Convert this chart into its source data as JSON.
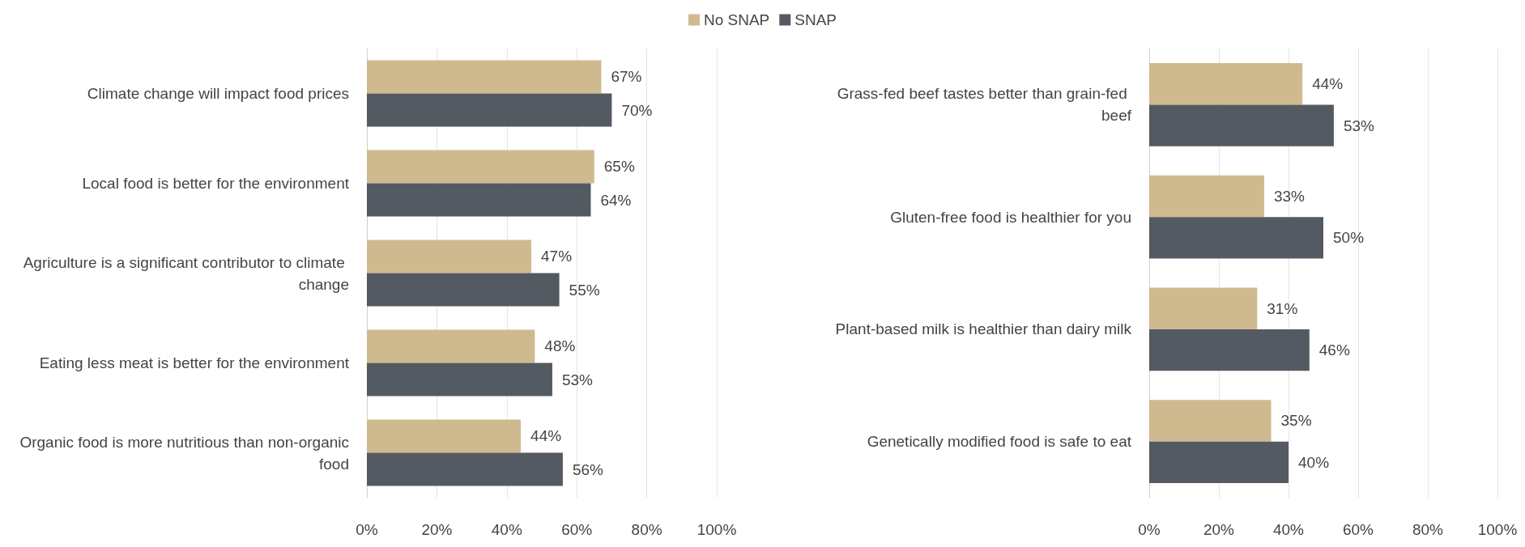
{
  "chart_data": [
    {
      "type": "bar",
      "orientation": "horizontal",
      "categories": [
        "Climate change will impact food prices",
        "Local food is better for the environment",
        "Agriculture is a significant contributor to climate change",
        "Eating less meat is better for the environment",
        "Organic food is more nutritious than non-organic food"
      ],
      "series": [
        {
          "name": "No SNAP",
          "color": "#cfba8f",
          "values": [
            67,
            65,
            47,
            48,
            44
          ],
          "value_labels": [
            "67%",
            "65%",
            "47%",
            "48%",
            "44%"
          ]
        },
        {
          "name": "SNAP",
          "color": "#545a61",
          "values": [
            70,
            64,
            55,
            53,
            56
          ],
          "value_labels": [
            "70%",
            "64%",
            "55%",
            "53%",
            "56%"
          ]
        }
      ],
      "xlim": [
        0,
        100
      ],
      "xticks": [
        {
          "value": 0,
          "label": "0%"
        },
        {
          "value": 20,
          "label": "20%"
        },
        {
          "value": 40,
          "label": "40%"
        },
        {
          "value": 60,
          "label": "60%"
        },
        {
          "value": 80,
          "label": "80%"
        },
        {
          "value": 100,
          "label": "100%"
        }
      ],
      "grid": "x",
      "legend": "top"
    },
    {
      "type": "bar",
      "orientation": "horizontal",
      "categories": [
        "Grass-fed beef tastes better than grain-fed beef",
        "Gluten-free food is healthier for you",
        "Plant-based milk is healthier than dairy milk",
        "Genetically modified food is safe to eat"
      ],
      "series": [
        {
          "color": "#cfba8f",
          "values": [
            44,
            33,
            31,
            35
          ],
          "value_labels": [
            "44%",
            "33%",
            "31%",
            "35%"
          ]
        },
        {
          "color": "#545a61",
          "values": [
            53,
            50,
            46,
            40
          ],
          "value_labels": [
            "53%",
            "50%",
            "46%",
            "40%"
          ]
        }
      ],
      "xlim": [
        0,
        100
      ],
      "xticks": [
        {
          "value": 0,
          "label": "0%"
        },
        {
          "value": 20,
          "label": "20%"
        },
        {
          "value": 40,
          "label": "40%"
        },
        {
          "value": 60,
          "label": "60%"
        },
        {
          "value": 80,
          "label": "80%"
        },
        {
          "value": 100,
          "label": "100%"
        }
      ],
      "grid": "x",
      "legend": false
    }
  ]
}
